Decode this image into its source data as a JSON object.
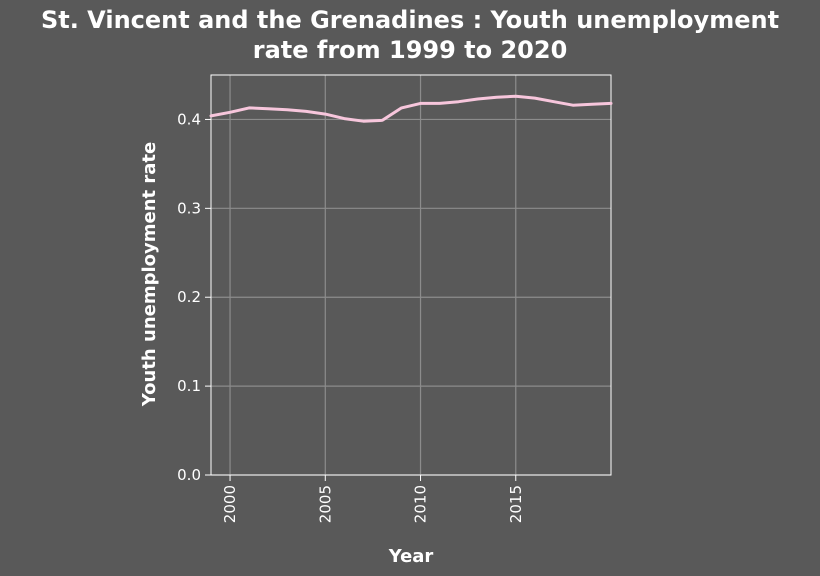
{
  "chart_data": {
    "type": "line",
    "title": "St. Vincent and the Grenadines : Youth unemployment rate from 1999 to 2020",
    "title_lines": [
      "St. Vincent and the Grenadines : Youth unemployment",
      "rate from 1999 to 2020"
    ],
    "xlabel": "Year",
    "ylabel": "Youth unemployment rate",
    "xlim": [
      1999,
      2020
    ],
    "ylim": [
      0.0,
      0.45
    ],
    "x_ticks": [
      2000,
      2005,
      2010,
      2015
    ],
    "x_tick_labels": [
      "2000",
      "2005",
      "2010",
      "2015"
    ],
    "y_ticks": [
      0.0,
      0.1,
      0.2,
      0.3,
      0.4
    ],
    "y_tick_labels": [
      "0.0",
      "0.1",
      "0.2",
      "0.3",
      "0.4"
    ],
    "grid": true,
    "series": [
      {
        "color": "#f7c6dc",
        "x": [
          1999,
          2000,
          2001,
          2002,
          2003,
          2004,
          2005,
          2006,
          2007,
          2008,
          2009,
          2010,
          2011,
          2012,
          2013,
          2014,
          2015,
          2016,
          2017,
          2018,
          2019,
          2020
        ],
        "y": [
          0.404,
          0.408,
          0.413,
          0.412,
          0.411,
          0.409,
          0.406,
          0.401,
          0.398,
          0.399,
          0.413,
          0.418,
          0.418,
          0.42,
          0.423,
          0.425,
          0.426,
          0.424,
          0.42,
          0.416,
          0.417,
          0.418
        ]
      }
    ]
  },
  "colors": {
    "background": "#595959",
    "grid": "#8c8c8c",
    "axis": "#ffffff",
    "line": "#f7c6dc"
  }
}
